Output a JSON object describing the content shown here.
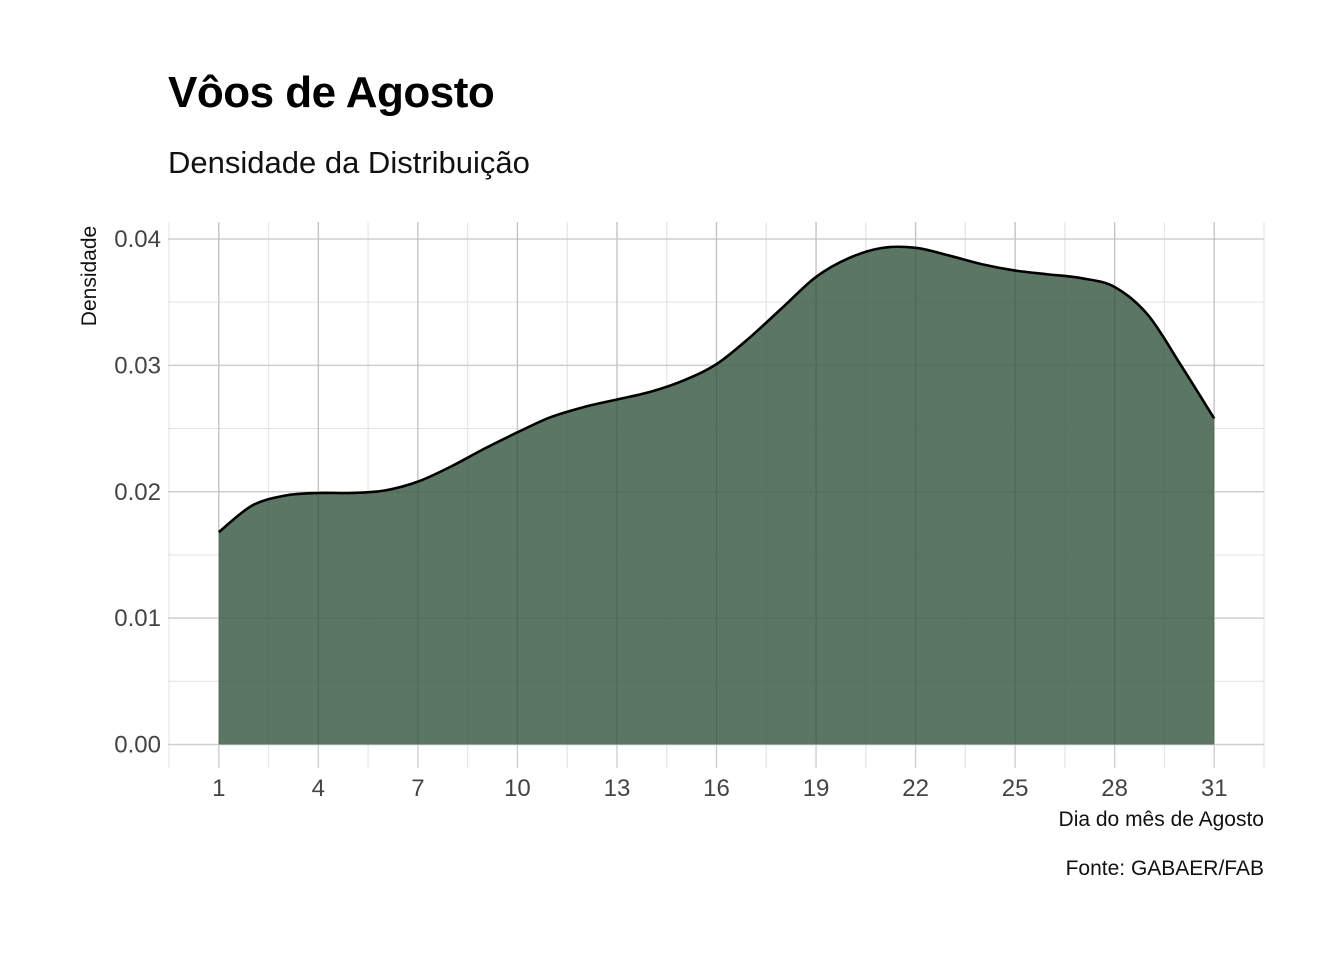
{
  "chart_data": {
    "type": "area",
    "title": "Vôos de Agosto",
    "subtitle": "Densidade da Distribuição",
    "xlabel": "Dia do mês de Agosto",
    "ylabel": "Densidade",
    "caption": "Fonte: GABAER/FAB",
    "xlim": [
      1,
      31
    ],
    "ylim": [
      0,
      0.04
    ],
    "x_ticks": [
      1,
      4,
      7,
      10,
      13,
      16,
      19,
      22,
      25,
      28,
      31
    ],
    "y_ticks": [
      "0.00",
      "0.01",
      "0.02",
      "0.03",
      "0.04"
    ],
    "grid": true,
    "fill_color": "#3e5e48",
    "line_color": "#000000",
    "x": [
      1,
      2,
      3,
      4,
      5,
      6,
      7,
      8,
      9,
      10,
      11,
      12,
      13,
      14,
      15,
      16,
      17,
      18,
      19,
      20,
      21,
      22,
      23,
      24,
      25,
      26,
      27,
      28,
      29,
      30,
      31
    ],
    "y": [
      0.0168,
      0.0189,
      0.0197,
      0.0199,
      0.0199,
      0.0201,
      0.0208,
      0.022,
      0.0234,
      0.0247,
      0.0259,
      0.0267,
      0.0273,
      0.0279,
      0.0288,
      0.0301,
      0.0322,
      0.0346,
      0.037,
      0.0385,
      0.0393,
      0.0393,
      0.0387,
      0.038,
      0.0375,
      0.0372,
      0.0369,
      0.0362,
      0.034,
      0.03,
      0.0258
    ]
  }
}
